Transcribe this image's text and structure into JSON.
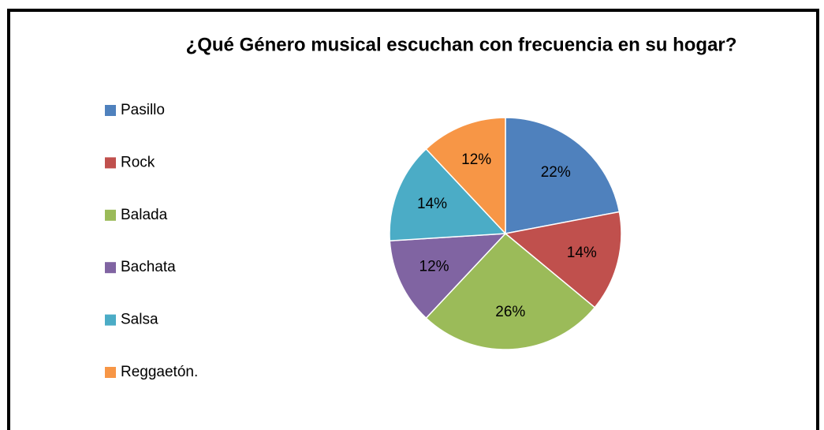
{
  "chart_data": {
    "type": "pie",
    "title": "¿Qué Género musical escuchan con frecuencia en su hogar?",
    "categories": [
      "Pasillo",
      "Rock",
      "Balada",
      "Bachata",
      "Salsa",
      "Reggaetón."
    ],
    "values": [
      22,
      14,
      26,
      12,
      14,
      12
    ],
    "value_labels": [
      "22%",
      "14%",
      "26%",
      "12%",
      "14%",
      "12%"
    ],
    "colors": [
      "#4f81bd",
      "#c0504d",
      "#9bbb59",
      "#8064a2",
      "#4bacc6",
      "#f79646"
    ],
    "legend": "left"
  }
}
